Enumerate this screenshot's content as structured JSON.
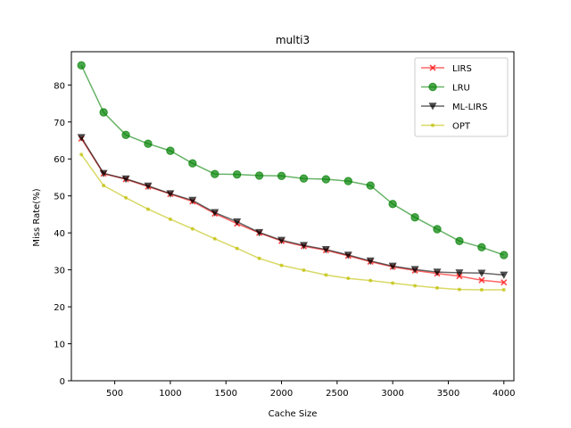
{
  "chart_data": {
    "type": "line",
    "title": "multi3",
    "xlabel": "Cache Size",
    "ylabel": "Miss Rate(%)",
    "xlim": [
      110,
      4090
    ],
    "ylim": [
      0,
      89
    ],
    "xticks": [
      500,
      1000,
      1500,
      2000,
      2500,
      3000,
      3500,
      4000
    ],
    "yticks": [
      0,
      10,
      20,
      30,
      40,
      50,
      60,
      70,
      80
    ],
    "grid": false,
    "legend_position": "upper right",
    "x": [
      200,
      400,
      600,
      800,
      1000,
      1200,
      1400,
      1600,
      1800,
      2000,
      2200,
      2400,
      2600,
      2800,
      3000,
      3200,
      3400,
      3600,
      3800,
      4000
    ],
    "series": [
      {
        "name": "LIRS",
        "color": "#ff0000",
        "marker": "X",
        "values": [
          65.5,
          56.0,
          54.5,
          52.5,
          50.5,
          48.5,
          45.2,
          42.5,
          40.0,
          37.8,
          36.4,
          35.3,
          33.8,
          32.2,
          30.8,
          29.8,
          29.0,
          28.3,
          27.2,
          26.6
        ]
      },
      {
        "name": "LRU",
        "color": "#008000",
        "marker": "circle",
        "values": [
          85.3,
          72.6,
          66.5,
          64.1,
          62.2,
          58.8,
          55.9,
          55.8,
          55.5,
          55.4,
          54.7,
          54.5,
          54.0,
          52.8,
          47.8,
          44.2,
          41.0,
          37.8,
          36.1,
          34.0
        ]
      },
      {
        "name": "ML-LIRS",
        "color": "#000000",
        "marker": "triangle-down",
        "values": [
          65.8,
          56.1,
          54.6,
          52.7,
          50.6,
          48.8,
          45.5,
          43.0,
          40.1,
          38.0,
          36.6,
          35.5,
          34.0,
          32.4,
          31.0,
          30.1,
          29.4,
          29.2,
          29.1,
          28.6
        ]
      },
      {
        "name": "OPT",
        "color": "#bfbf00",
        "marker": "point",
        "values": [
          61.2,
          52.8,
          49.5,
          46.4,
          43.7,
          41.1,
          38.4,
          35.8,
          33.1,
          31.2,
          29.9,
          28.6,
          27.7,
          27.1,
          26.4,
          25.7,
          25.1,
          24.7,
          24.6,
          24.6
        ]
      }
    ]
  }
}
